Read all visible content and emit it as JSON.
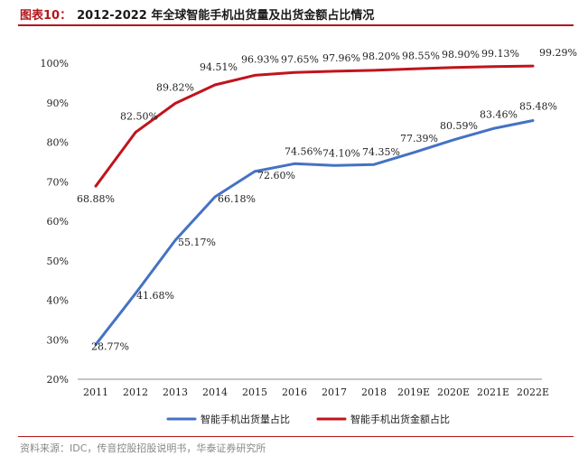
{
  "figure": {
    "label": "图表10：",
    "title": "2012-2022 年全球智能手机出货量及出货金额占比情况",
    "source": "资料来源：IDC，传音控股招股说明书，华泰证券研究所"
  },
  "colors": {
    "series_units": "#4472c4",
    "series_value": "#c0141c",
    "accent": "#b3161c"
  },
  "chart_data": {
    "type": "line",
    "title": "2012-2022 年全球智能手机出货量及出货金额占比情况",
    "x": [
      "2011",
      "2012",
      "2013",
      "2014",
      "2015",
      "2016",
      "2017",
      "2018",
      "2019E",
      "2020E",
      "2021E",
      "2022E"
    ],
    "y_ticks": [
      "20%",
      "30%",
      "40%",
      "50%",
      "60%",
      "70%",
      "80%",
      "90%",
      "100%"
    ],
    "ylim": [
      20,
      100
    ],
    "grid": false,
    "legend_position": "bottom",
    "series": [
      {
        "name": "智能手机出货量占比",
        "color": "#4472c4",
        "values": [
          28.77,
          41.68,
          55.17,
          66.18,
          72.6,
          74.56,
          74.1,
          74.35,
          77.39,
          80.59,
          83.46,
          85.48
        ],
        "labels": [
          "28.77%",
          "41.68%",
          "55.17%",
          "66.18%",
          "72.60%",
          "74.56%",
          "74.10%",
          "74.35%",
          "77.39%",
          "80.59%",
          "83.46%",
          "85.48%"
        ]
      },
      {
        "name": "智能手机出货金额占比",
        "color": "#c0141c",
        "values": [
          68.88,
          82.5,
          89.82,
          94.51,
          96.93,
          97.65,
          97.96,
          98.2,
          98.55,
          98.9,
          99.13,
          99.29
        ],
        "labels": [
          "68.88%",
          "82.50%",
          "89.82%",
          "94.51%",
          "96.93%",
          "97.65%",
          "97.96%",
          "98.20%",
          "98.55%",
          "98.90%",
          "99.13%",
          "99.29%"
        ]
      }
    ]
  }
}
